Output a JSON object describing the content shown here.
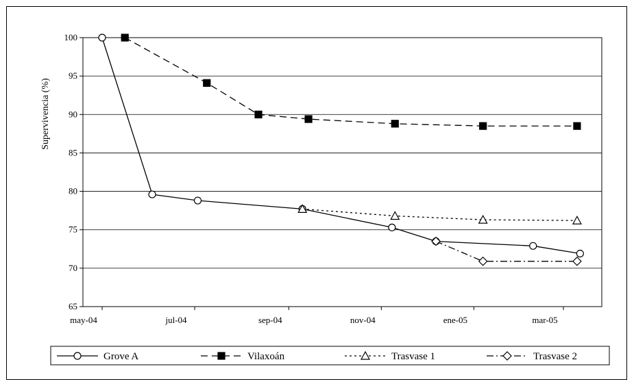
{
  "chart_data": {
    "type": "line",
    "ylabel": "Supervivencia (%)",
    "xlabel": "",
    "title": "",
    "ylim": [
      65,
      100
    ],
    "yticks": [
      65,
      70,
      75,
      80,
      85,
      90,
      95,
      100
    ],
    "x_ticks": [
      {
        "label": "may-04",
        "date": "2004-05-01"
      },
      {
        "label": "jul-04",
        "date": "2004-07-01"
      },
      {
        "label": "sep-04",
        "date": "2004-09-01"
      },
      {
        "label": "nov-04",
        "date": "2004-11-01"
      },
      {
        "label": "ene-05",
        "date": "2005-01-01"
      },
      {
        "label": "mar-05",
        "date": "2005-03-01"
      }
    ],
    "grid": "horizontal",
    "legend_position": "bottom",
    "series": [
      {
        "name": "Grove A",
        "line": "solid",
        "marker": "circle",
        "fill": "#ffffff",
        "points": [
          {
            "date": "2004-05-01",
            "value": 100
          },
          {
            "date": "2004-06-03",
            "value": 79.6
          },
          {
            "date": "2004-07-03",
            "value": 78.8
          },
          {
            "date": "2004-09-10",
            "value": 77.7
          },
          {
            "date": "2004-11-08",
            "value": 75.3
          },
          {
            "date": "2004-12-07",
            "value": 73.5
          },
          {
            "date": "2005-02-09",
            "value": 72.9
          },
          {
            "date": "2005-03-12",
            "value": 71.9
          }
        ]
      },
      {
        "name": "Vilaxoán",
        "line": "dashed",
        "marker": "square",
        "fill": "#000000",
        "points": [
          {
            "date": "2004-05-16",
            "value": 100
          },
          {
            "date": "2004-07-09",
            "value": 94.1
          },
          {
            "date": "2004-08-12",
            "value": 90.0
          },
          {
            "date": "2004-09-14",
            "value": 89.4
          },
          {
            "date": "2004-11-10",
            "value": 88.8
          },
          {
            "date": "2005-01-07",
            "value": 88.5
          },
          {
            "date": "2005-03-10",
            "value": 88.5
          }
        ]
      },
      {
        "name": "Trasvase 1",
        "line": "dotted",
        "marker": "triangle",
        "fill": "#ffffff",
        "points": [
          {
            "date": "2004-09-10",
            "value": 77.7
          },
          {
            "date": "2004-11-10",
            "value": 76.8
          },
          {
            "date": "2005-01-07",
            "value": 76.3
          },
          {
            "date": "2005-03-10",
            "value": 76.2
          }
        ]
      },
      {
        "name": "Trasvase 2",
        "line": "dashdot",
        "marker": "diamond",
        "fill": "#ffffff",
        "points": [
          {
            "date": "2004-12-07",
            "value": 73.5
          },
          {
            "date": "2005-01-07",
            "value": 70.9
          },
          {
            "date": "2005-03-10",
            "value": 70.9
          }
        ]
      }
    ]
  }
}
